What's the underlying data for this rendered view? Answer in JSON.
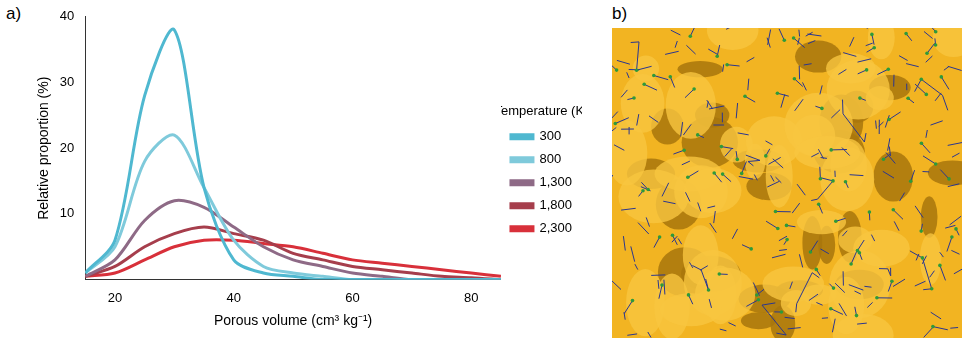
{
  "panel_labels": [
    "a)",
    "b)"
  ],
  "chart_data": {
    "type": "line",
    "x_label": "Porous volume (cm³ kg⁻¹)",
    "y_label": "Relative proportion (%)",
    "legend_title": "Temperature (K)",
    "legend": "right",
    "grid": false,
    "x": [
      15,
      20,
      25,
      30,
      35,
      40,
      45,
      50,
      55,
      60,
      65,
      70,
      75,
      80,
      85
    ],
    "xlim": [
      15,
      85
    ],
    "xticks": [
      20,
      40,
      60,
      80
    ],
    "ylim": [
      0,
      40
    ],
    "yticks": [
      10,
      20,
      30,
      40
    ],
    "series": [
      {
        "name": "300",
        "color": "#4fb8d0",
        "values": [
          1,
          6,
          28,
          38,
          14,
          3,
          1,
          0.5,
          0,
          0,
          0,
          0,
          0,
          0,
          0
        ]
      },
      {
        "name": "800",
        "color": "#7fcadb",
        "values": [
          1,
          5,
          18,
          22,
          14,
          6,
          2,
          1,
          0.5,
          0,
          0,
          0,
          0,
          0,
          0
        ]
      },
      {
        "name": "1,300",
        "color": "#8e6a86",
        "values": [
          0.5,
          3,
          9,
          12,
          11,
          8,
          5,
          3,
          2,
          1,
          0.5,
          0,
          0,
          0,
          0
        ]
      },
      {
        "name": "1,800",
        "color": "#a63e4c",
        "values": [
          0.5,
          2,
          5,
          7,
          8,
          7,
          6,
          4,
          3,
          2,
          1.5,
          1,
          0.5,
          0.3,
          0
        ]
      },
      {
        "name": "2,300",
        "color": "#d8303a",
        "values": [
          0.5,
          1,
          3,
          5,
          6,
          6,
          5.5,
          5,
          4,
          3,
          2.5,
          2,
          1.5,
          1,
          0.5
        ]
      }
    ]
  }
}
